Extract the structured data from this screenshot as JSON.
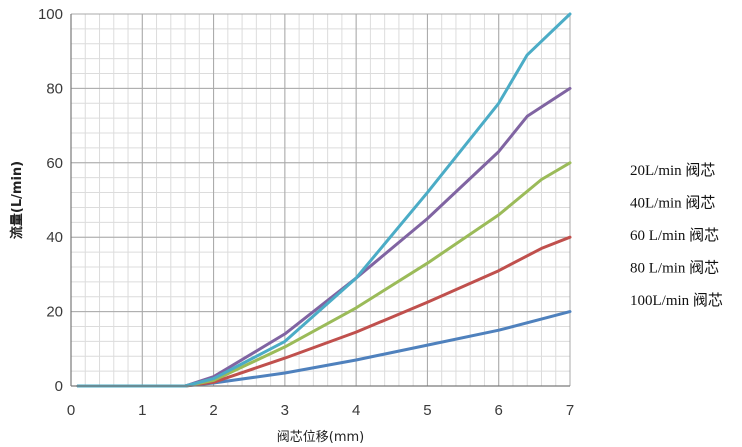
{
  "chart_data": {
    "type": "line",
    "xlabel": "阀芯位移(mm)",
    "ylabel": "流量(L/min)",
    "xlim": [
      0,
      7
    ],
    "ylim": [
      0,
      100
    ],
    "x_ticks": [
      "0",
      "1",
      "2",
      "3",
      "4",
      "5",
      "6",
      "7"
    ],
    "y_ticks": [
      "0",
      "20",
      "40",
      "60",
      "80",
      "100"
    ],
    "grid": true,
    "legend_position": "right",
    "legend": [
      "20L/min 阀芯",
      "40L/min 阀芯",
      "60 L/min 阀芯",
      "80 L/min 阀芯",
      "100L/min 阀芯"
    ],
    "series": [
      {
        "color": "#4f81bd",
        "x": [
          0.1,
          1.6,
          2.0,
          3.0,
          4.0,
          5.0,
          6.0,
          7.0
        ],
        "y": [
          0,
          0,
          0.8,
          3.5,
          7,
          11,
          15,
          20
        ]
      },
      {
        "color": "#c0504d",
        "x": [
          0.1,
          1.6,
          2.0,
          3.0,
          4.0,
          5.0,
          6.0,
          6.6,
          7.0
        ],
        "y": [
          0,
          0,
          1,
          7.5,
          14.5,
          22.5,
          31,
          37,
          40
        ]
      },
      {
        "color": "#9bbb59",
        "x": [
          0.1,
          1.6,
          2.0,
          3.0,
          4.0,
          5.0,
          6.0,
          6.6,
          7.0
        ],
        "y": [
          0,
          0,
          1.5,
          10.5,
          21,
          33,
          46,
          55.5,
          60
        ]
      },
      {
        "color": "#8064a2",
        "x": [
          0.1,
          1.6,
          2.0,
          3.0,
          4.0,
          5.0,
          6.0,
          6.4,
          7.0
        ],
        "y": [
          0,
          0,
          2.5,
          14,
          29,
          45,
          63,
          72.5,
          80
        ]
      },
      {
        "color": "#4bacc6",
        "x": [
          0.1,
          1.6,
          2.0,
          3.0,
          4.0,
          5.0,
          6.0,
          6.4,
          7.0
        ],
        "y": [
          0,
          0,
          2,
          12,
          29,
          52,
          76,
          89,
          100
        ]
      }
    ]
  }
}
